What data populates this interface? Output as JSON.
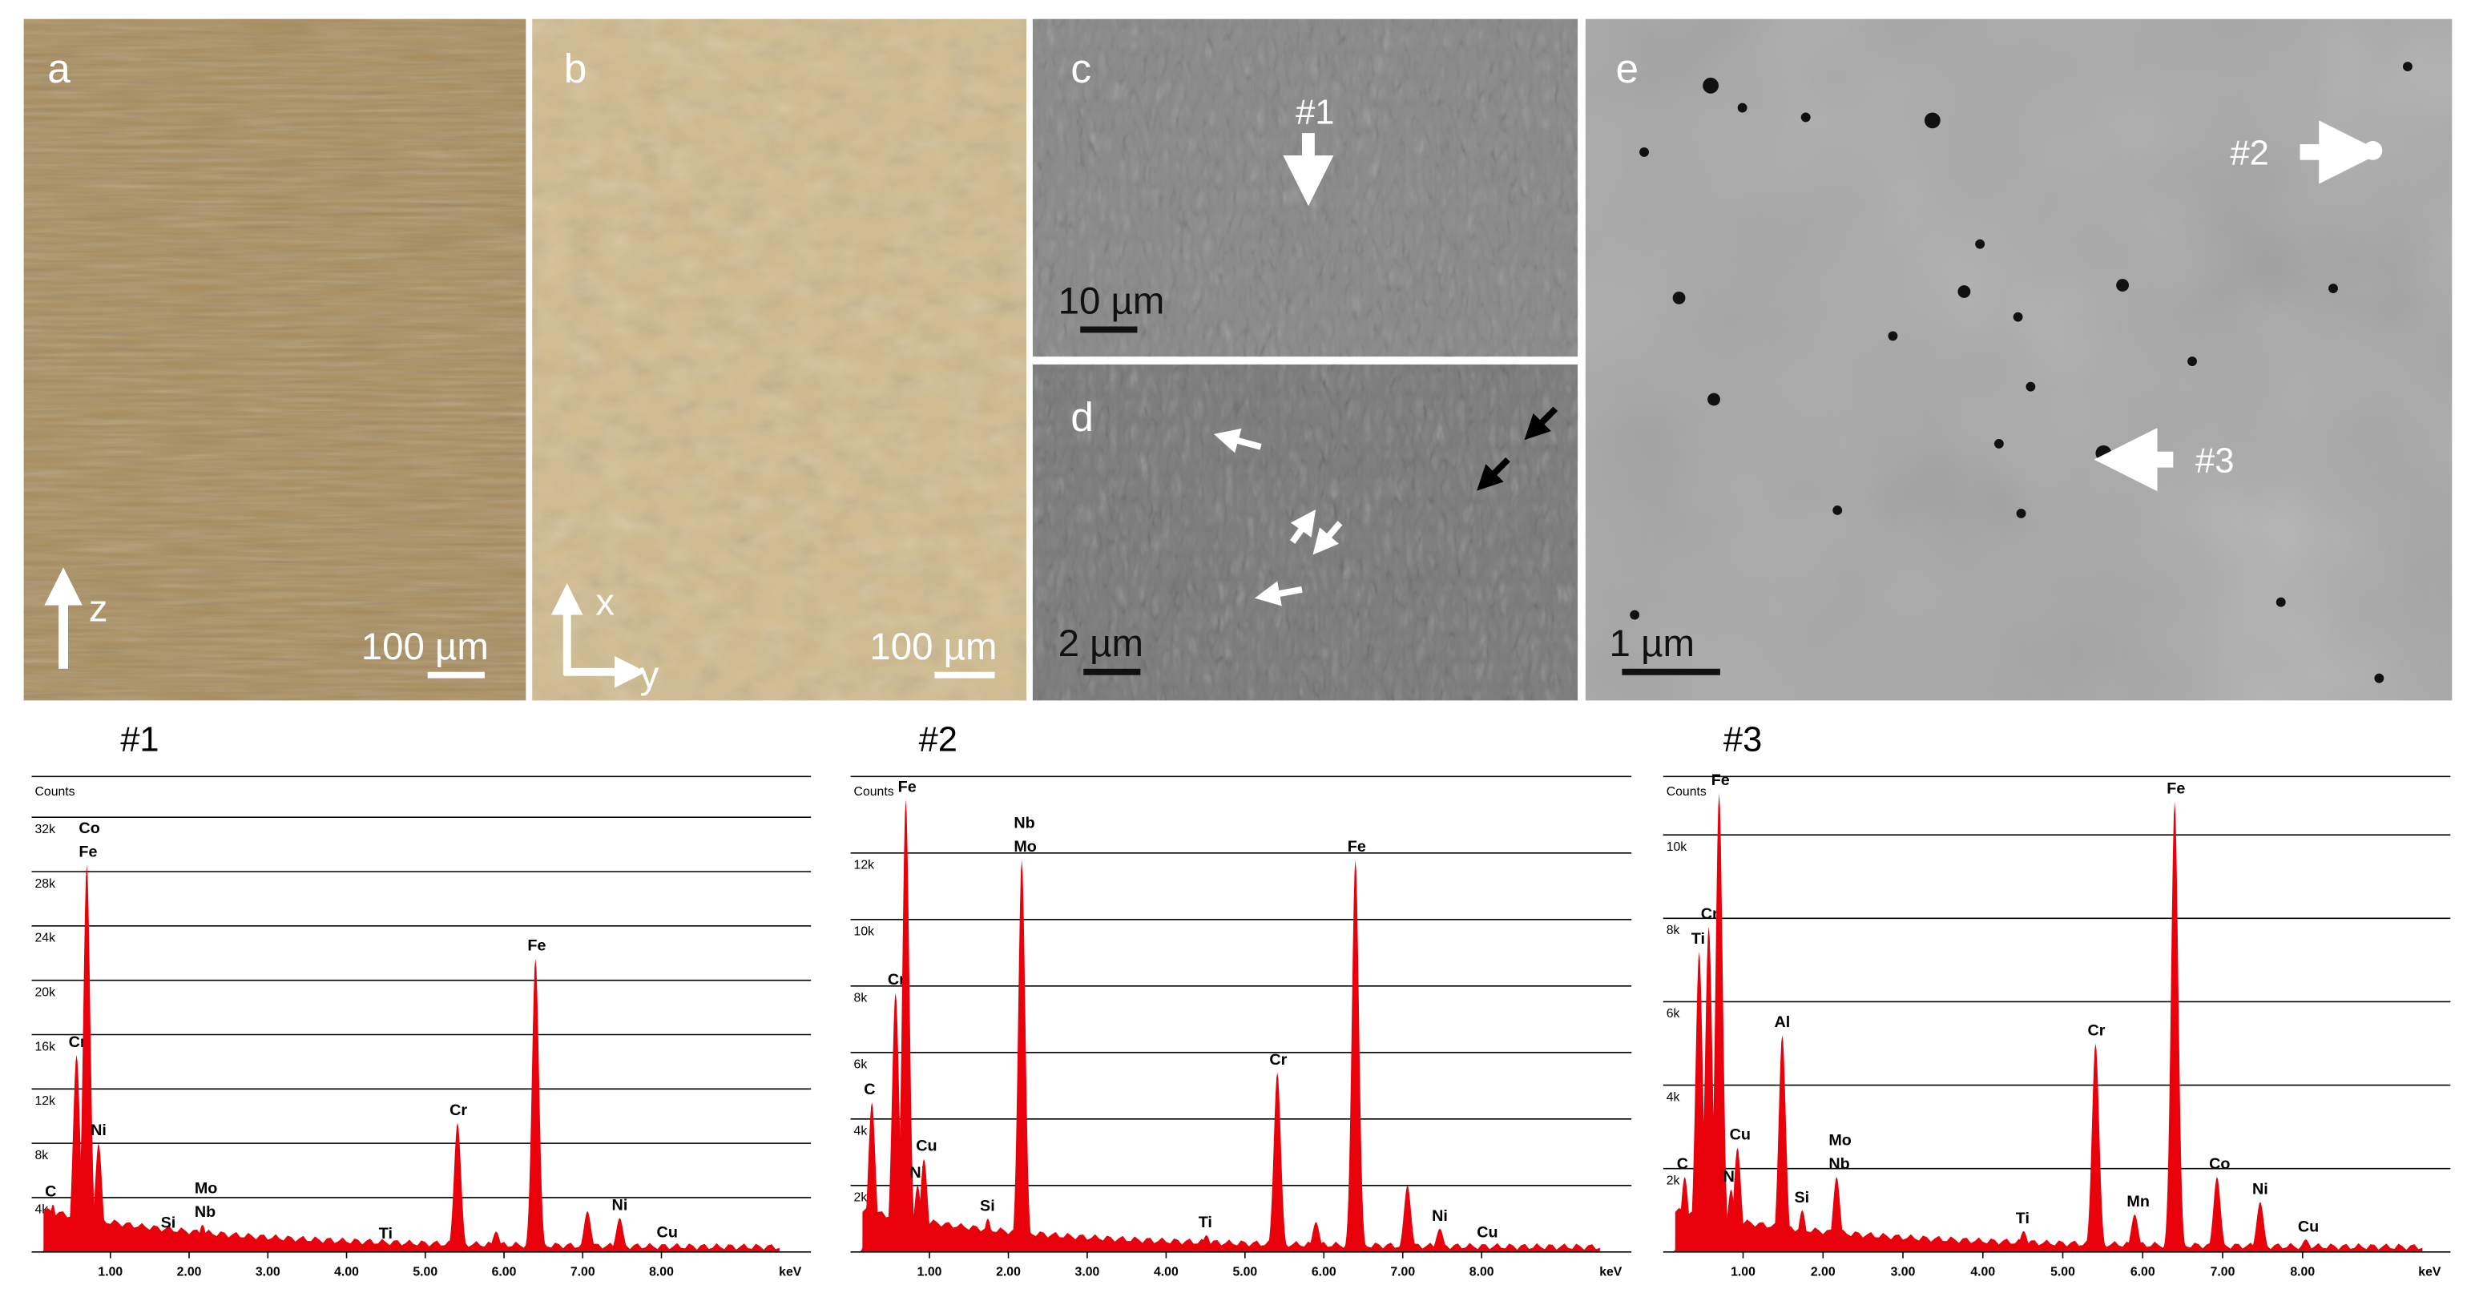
{
  "panels": [
    {
      "label": "a",
      "scale_bar": "100 µm",
      "arrow_labels": [
        "z"
      ]
    },
    {
      "label": "b",
      "scale_bar": "100 µm",
      "arrow_labels": [
        "x",
        "y"
      ]
    },
    {
      "label": "c",
      "scale_bar": "10 µm",
      "markers": [
        "#1"
      ]
    },
    {
      "label": "d",
      "scale_bar": "2 µm"
    },
    {
      "label": "e",
      "scale_bar": "1 µm",
      "markers": [
        "#2",
        "#3"
      ]
    }
  ],
  "chart_data": [
    {
      "type": "spectrum",
      "title": "#1",
      "ylabel": "Counts",
      "xlabel": "keV",
      "xlim": [
        0,
        9.9
      ],
      "ylim": [
        0,
        35000
      ],
      "xticks": [
        {
          "value": 1,
          "label": "1.00"
        },
        {
          "value": 2,
          "label": "2.00"
        },
        {
          "value": 3,
          "label": "3.00"
        },
        {
          "value": 4,
          "label": "4.00"
        },
        {
          "value": 5,
          "label": "5.00"
        },
        {
          "value": 6,
          "label": "6.00"
        },
        {
          "value": 7,
          "label": "7.00"
        },
        {
          "value": 8,
          "label": "8.00"
        }
      ],
      "yticks": [
        {
          "value": 4000,
          "label": "4k"
        },
        {
          "value": 8000,
          "label": "8k"
        },
        {
          "value": 12000,
          "label": "12k"
        },
        {
          "value": 16000,
          "label": "16k"
        },
        {
          "value": 20000,
          "label": "20k"
        },
        {
          "value": 24000,
          "label": "24k"
        },
        {
          "value": 28000,
          "label": "28k"
        },
        {
          "value": 32000,
          "label": "32k"
        }
      ],
      "series": [
        {
          "color": "#e8000b",
          "x": [
            0.27,
            0.57,
            0.7,
            0.85,
            1.74,
            2.17,
            4.51,
            5.41,
            5.9,
            6.4,
            7.06,
            7.47,
            8.04
          ],
          "values": [
            3500,
            14500,
            28500,
            8000,
            1200,
            2000,
            400,
            9500,
            1500,
            21600,
            3000,
            2500,
            500
          ],
          "labels": [
            [
              "C"
            ],
            [
              "Cr"
            ],
            [
              "Co",
              "Fe"
            ],
            [
              "Ni"
            ],
            [
              "Si"
            ],
            [
              "Mo",
              "Nb"
            ],
            [
              "Ti"
            ],
            [
              "Cr"
            ],
            [],
            [
              "Fe"
            ],
            [],
            [
              "Ni"
            ],
            [
              "Cu"
            ]
          ]
        }
      ]
    },
    {
      "type": "spectrum",
      "title": "#2",
      "ylabel": "Counts",
      "xlabel": "keV",
      "xlim": [
        0,
        9.9
      ],
      "ylim": [
        0,
        14300
      ],
      "xticks": [
        {
          "value": 1,
          "label": "1.00"
        },
        {
          "value": 2,
          "label": "2.00"
        },
        {
          "value": 3,
          "label": "3.00"
        },
        {
          "value": 4,
          "label": "4.00"
        },
        {
          "value": 5,
          "label": "5.00"
        },
        {
          "value": 6,
          "label": "6.00"
        },
        {
          "value": 7,
          "label": "7.00"
        },
        {
          "value": 8,
          "label": "8.00"
        }
      ],
      "yticks": [
        {
          "value": 2000,
          "label": "2k"
        },
        {
          "value": 4000,
          "label": "4k"
        },
        {
          "value": 6000,
          "label": "6k"
        },
        {
          "value": 8000,
          "label": "8k"
        },
        {
          "value": 10000,
          "label": "10k"
        },
        {
          "value": 12000,
          "label": "12k"
        }
      ],
      "series": [
        {
          "color": "#e8000b",
          "x": [
            0.27,
            0.57,
            0.7,
            0.85,
            0.93,
            1.74,
            2.17,
            4.51,
            5.41,
            5.9,
            6.4,
            7.06,
            7.47,
            8.04
          ],
          "values": [
            4500,
            7800,
            13600,
            2000,
            2800,
            1000,
            11800,
            500,
            5400,
            900,
            11800,
            2000,
            700,
            200
          ],
          "labels": [
            [
              "C"
            ],
            [
              "Cr"
            ],
            [
              "Fe"
            ],
            [
              "Ni"
            ],
            [
              "Cu"
            ],
            [
              "Si"
            ],
            [
              "Nb",
              "Mo"
            ],
            [
              "Ti"
            ],
            [
              "Cr"
            ],
            [],
            [
              "Fe"
            ],
            [],
            [
              "Ni"
            ],
            [
              "Cu"
            ]
          ]
        }
      ]
    },
    {
      "type": "spectrum",
      "title": "#3",
      "ylabel": "Counts",
      "xlabel": "keV",
      "xlim": [
        0,
        9.85
      ],
      "ylim": [
        0,
        11400
      ],
      "xticks": [
        {
          "value": 1,
          "label": "1.00"
        },
        {
          "value": 2,
          "label": "2.00"
        },
        {
          "value": 3,
          "label": "3.00"
        },
        {
          "value": 4,
          "label": "4.00"
        },
        {
          "value": 5,
          "label": "5.00"
        },
        {
          "value": 6,
          "label": "6.00"
        },
        {
          "value": 7,
          "label": "7.00"
        },
        {
          "value": 8,
          "label": "8.00"
        }
      ],
      "yticks": [
        {
          "value": 2000,
          "label": "2k"
        },
        {
          "value": 4000,
          "label": "4k"
        },
        {
          "value": 6000,
          "label": "6k"
        },
        {
          "value": 8000,
          "label": "8k"
        },
        {
          "value": 10000,
          "label": "10k"
        }
      ],
      "series": [
        {
          "color": "#e8000b",
          "x": [
            0.27,
            0.45,
            0.57,
            0.7,
            0.85,
            0.93,
            1.49,
            1.74,
            2.17,
            4.51,
            5.41,
            5.9,
            6.4,
            6.93,
            7.47,
            8.04
          ],
          "values": [
            1800,
            7200,
            7800,
            11000,
            1500,
            2500,
            5200,
            1000,
            1800,
            500,
            5000,
            900,
            10800,
            1800,
            1200,
            300
          ],
          "labels": [
            [
              "C"
            ],
            [
              "Ti"
            ],
            [
              "Cr"
            ],
            [
              "Fe"
            ],
            [
              "Ni"
            ],
            [
              "Cu"
            ],
            [
              "Al"
            ],
            [
              "Si"
            ],
            [
              "Mo",
              "Nb"
            ],
            [
              "Ti"
            ],
            [
              "Cr"
            ],
            [
              "Mn"
            ],
            [
              "Fe"
            ],
            [
              "Co"
            ],
            [
              "Ni"
            ],
            [
              "Cu"
            ]
          ]
        }
      ]
    }
  ]
}
